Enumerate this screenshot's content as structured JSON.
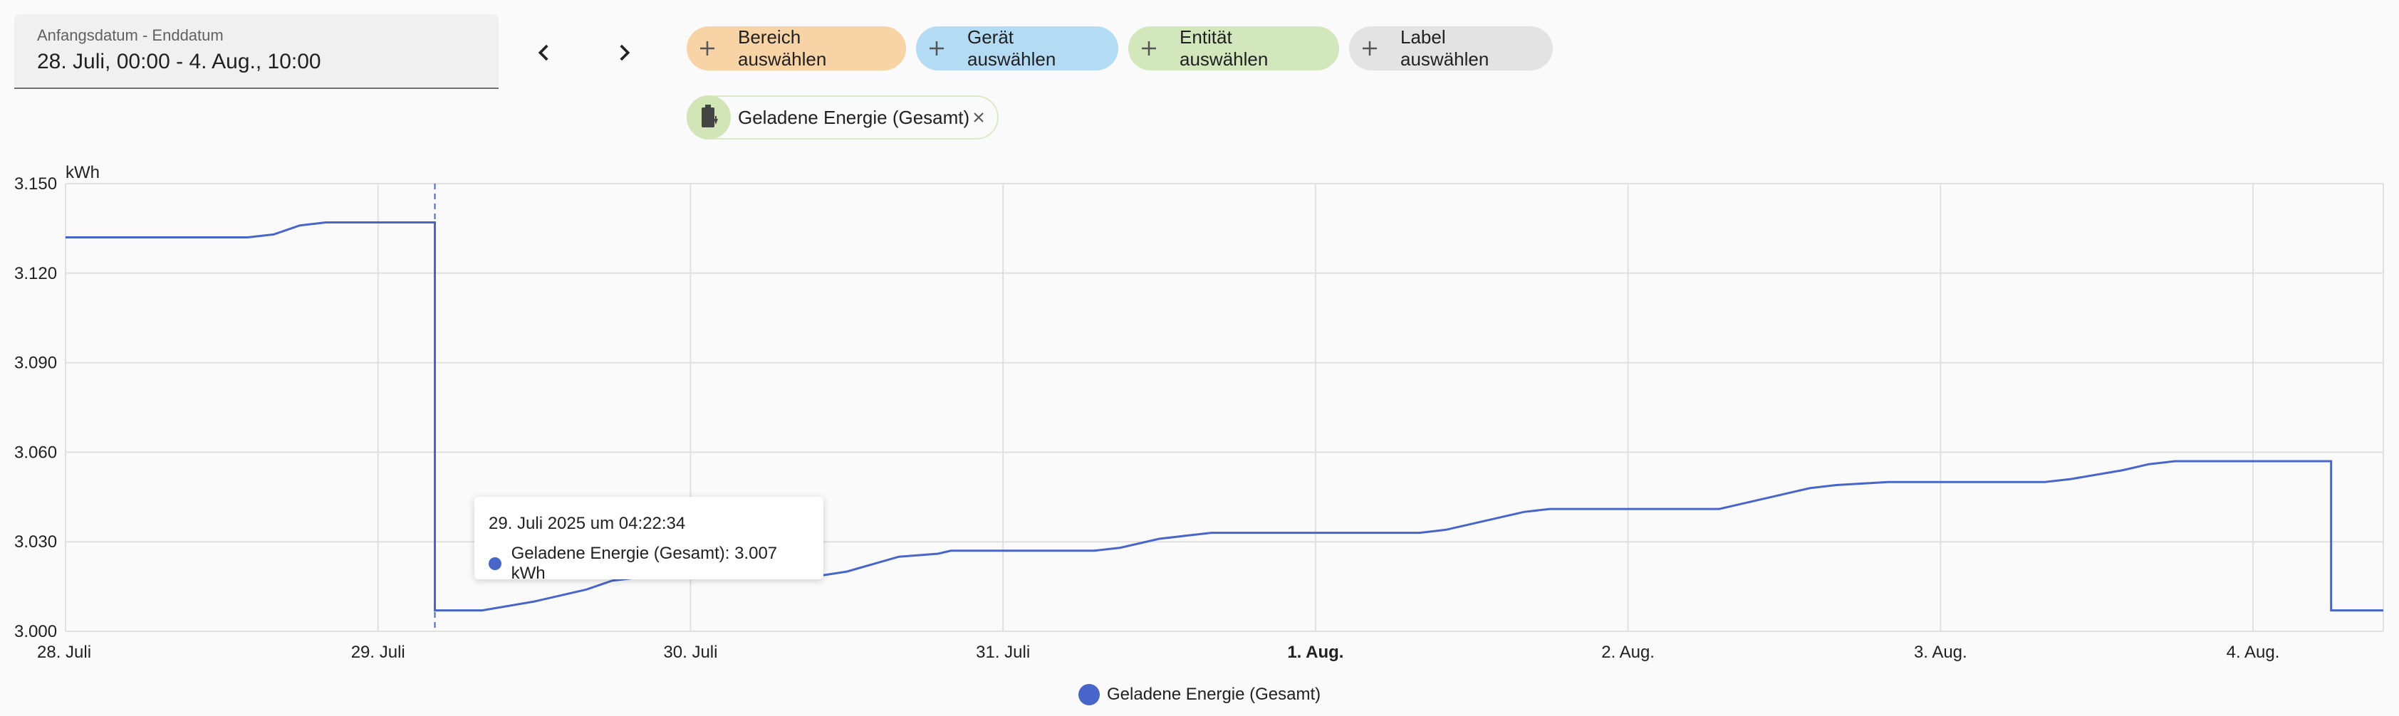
{
  "date_range": {
    "label": "Anfangsdatum - Enddatum",
    "value": "28. Juli, 00:00 - 4. Aug., 10:00"
  },
  "nav": {
    "prev_icon": "chevron-left-icon",
    "next_icon": "chevron-right-icon"
  },
  "filters": [
    {
      "label": "Bereich auswählen",
      "color": "#f7d3a6"
    },
    {
      "label": "Gerät auswählen",
      "color": "#b3dbf4"
    },
    {
      "label": "Entität auswählen",
      "color": "#d3e7bd"
    },
    {
      "label": "Label auswählen",
      "color": "#e3e3e3"
    }
  ],
  "selected_entity": {
    "label": "Geladene Energie (Gesamt)",
    "icon": "battery-charging-icon"
  },
  "tooltip": {
    "title": "29. Juli 2025 um 04:22:34",
    "text": "Geladene Energie (Gesamt): 3.007 kWh"
  },
  "legend": {
    "label": "Geladene Energie (Gesamt)"
  },
  "colors": {
    "series": "#4866c9",
    "grid": "#e0e0e0"
  },
  "chart_data": {
    "type": "line",
    "step": true,
    "unit_label": "kWh",
    "ylim": [
      3.0,
      3.15
    ],
    "yticks": [
      "3.150",
      "3.120",
      "3.090",
      "3.060",
      "3.030",
      "3.000"
    ],
    "xticks": [
      "28. Juli",
      "29. Juli",
      "30. Juli",
      "31. Juli",
      "1. Aug.",
      "2. Aug.",
      "3. Aug.",
      "4. Aug."
    ],
    "x_bold_tick": "1. Aug.",
    "grid": true,
    "legend_position": "bottom",
    "series": [
      {
        "name": "Geladene Energie (Gesamt)",
        "points": [
          [
            "28. Juli 00:00",
            3.132
          ],
          [
            "28. Juli 14:00",
            3.132
          ],
          [
            "28. Juli 16:00",
            3.133
          ],
          [
            "28. Juli 18:00",
            3.136
          ],
          [
            "28. Juli 20:00",
            3.137
          ],
          [
            "29. Juli 04:22",
            3.137
          ],
          [
            "29. Juli 04:22",
            3.007
          ],
          [
            "29. Juli 08:00",
            3.007
          ],
          [
            "29. Juli 12:00",
            3.01
          ],
          [
            "29. Juli 16:00",
            3.014
          ],
          [
            "29. Juli 18:00",
            3.017
          ],
          [
            "29. Juli 20:00",
            3.018
          ],
          [
            "30. Juli 09:00",
            3.018
          ],
          [
            "30. Juli 12:00",
            3.02
          ],
          [
            "30. Juli 16:00",
            3.025
          ],
          [
            "30. Juli 19:00",
            3.026
          ],
          [
            "30. Juli 20:00",
            3.027
          ],
          [
            "31. Juli 07:00",
            3.027
          ],
          [
            "31. Juli 09:00",
            3.028
          ],
          [
            "31. Juli 12:00",
            3.031
          ],
          [
            "31. Juli 14:00",
            3.032
          ],
          [
            "31. Juli 16:00",
            3.033
          ],
          [
            "1. Aug. 08:00",
            3.033
          ],
          [
            "1. Aug. 10:00",
            3.034
          ],
          [
            "1. Aug. 14:00",
            3.038
          ],
          [
            "1. Aug. 16:00",
            3.04
          ],
          [
            "1. Aug. 18:00",
            3.041
          ],
          [
            "2. Aug. 07:00",
            3.041
          ],
          [
            "2. Aug. 08:00",
            3.042
          ],
          [
            "2. Aug. 11:00",
            3.045
          ],
          [
            "2. Aug. 14:00",
            3.048
          ],
          [
            "2. Aug. 16:00",
            3.049
          ],
          [
            "2. Aug. 20:00",
            3.05
          ],
          [
            "3. Aug. 08:00",
            3.05
          ],
          [
            "3. Aug. 10:00",
            3.051
          ],
          [
            "3. Aug. 14:00",
            3.054
          ],
          [
            "3. Aug. 16:00",
            3.056
          ],
          [
            "3. Aug. 18:00",
            3.057
          ],
          [
            "4. Aug. 06:00",
            3.057
          ],
          [
            "4. Aug. 06:00",
            3.007
          ],
          [
            "4. Aug. 10:00",
            3.007
          ]
        ]
      }
    ]
  }
}
